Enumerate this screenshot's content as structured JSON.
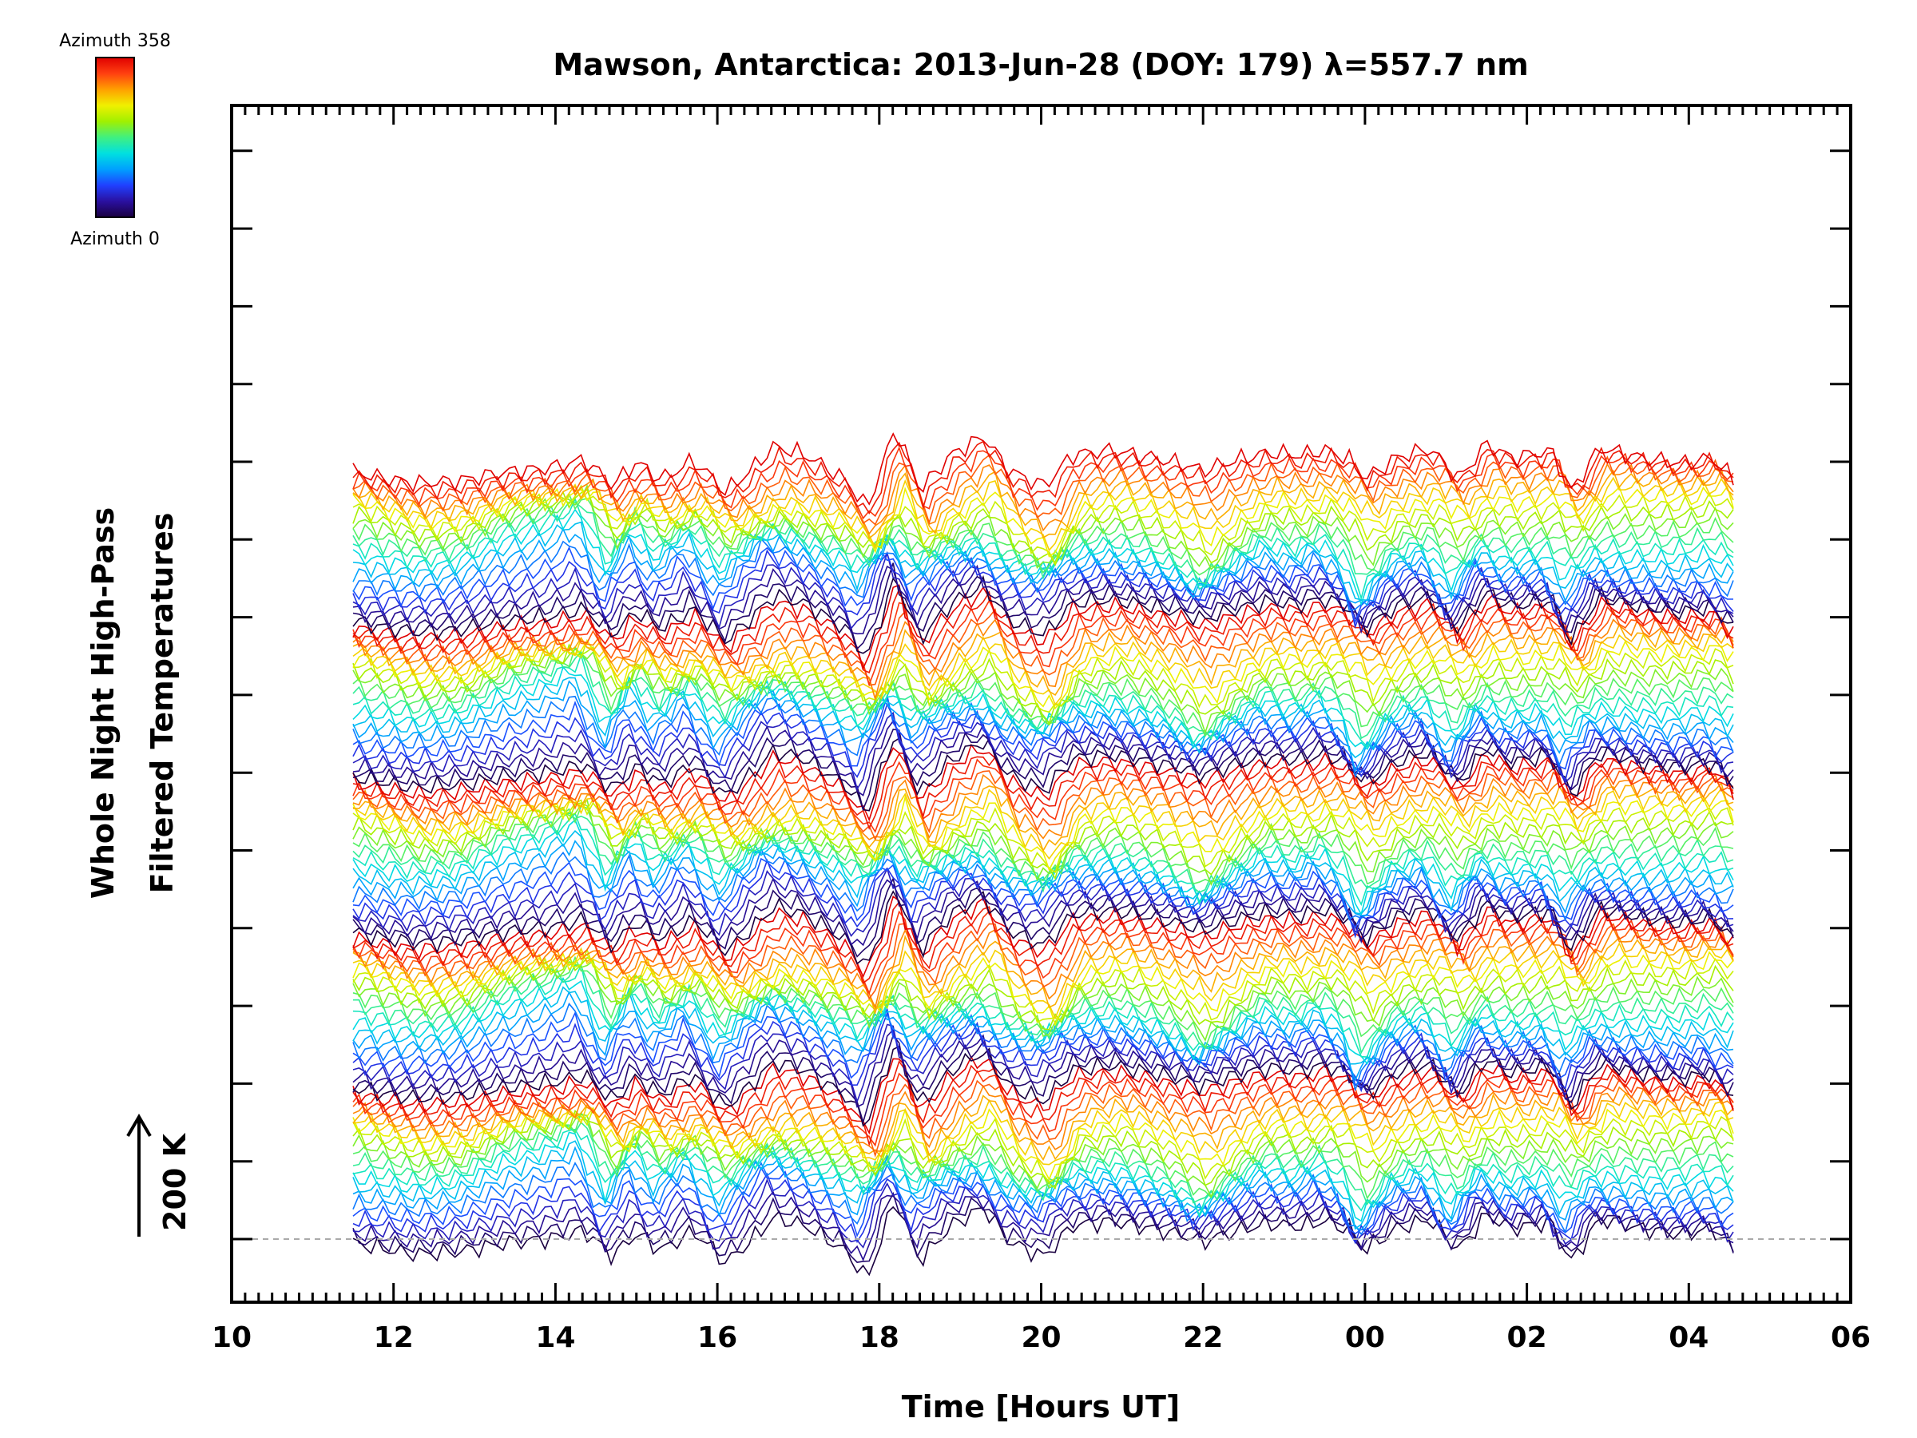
{
  "chart_data": {
    "type": "line",
    "title": "Mawson, Antarctica: 2013-Jun-28 (DOY: 179) λ=557.7 nm",
    "xlabel": "Time [Hours UT]",
    "ylabel_line1": "Whole Night High-Pass",
    "ylabel_line2": "Filtered Temperatures",
    "x_tick_labels": [
      "10",
      "12",
      "14",
      "16",
      "18",
      "20",
      "22",
      "00",
      "02",
      "04",
      "06"
    ],
    "x_ticks_hours": [
      10,
      12,
      14,
      16,
      18,
      20,
      22,
      24,
      26,
      28,
      30
    ],
    "xlim_hours": [
      10,
      30
    ],
    "data_range_hours": [
      11.5,
      28.55
    ],
    "scale_bar": {
      "label": "200 K",
      "value_K": 200
    },
    "colorbar": {
      "top_label": "Azimuth 358",
      "bottom_label": "Azimuth 0",
      "azimuth_range": [
        0,
        358
      ],
      "colormap": [
        "#1a0040",
        "#2a10a0",
        "#2040ff",
        "#00a0ff",
        "#00e0e0",
        "#40f080",
        "#a0f000",
        "#f0f000",
        "#ffa000",
        "#ff4010",
        "#e00000"
      ]
    },
    "stack": {
      "groups": 5,
      "traces_per_group": 24,
      "baseline_dashed": true,
      "grid": false
    },
    "wave_hours": [
      11.5,
      12.3,
      12.8,
      13.4,
      14.0,
      14.35,
      14.7,
      15.0,
      15.3,
      15.7,
      16.1,
      16.7,
      17.1,
      17.6,
      17.85,
      18.2,
      18.5,
      18.9,
      19.3,
      19.6,
      20.05,
      20.4,
      20.9,
      21.35,
      21.8,
      22.0,
      22.4,
      22.8,
      23.2,
      23.5,
      23.8,
      24.0,
      24.4,
      24.8,
      25.15,
      25.5,
      25.8,
      26.3,
      26.55,
      26.9,
      27.4,
      27.9,
      28.3,
      28.55
    ],
    "wave_values": [
      0.1,
      -0.4,
      -0.3,
      0.3,
      0.6,
      0.95,
      -0.5,
      0.6,
      -0.2,
      0.5,
      -0.6,
      0.7,
      0.4,
      -0.3,
      -1.0,
      1.0,
      -0.6,
      0.3,
      0.8,
      -0.2,
      -0.8,
      0.3,
      0.5,
      0.2,
      -0.3,
      -0.7,
      0.0,
      0.5,
      0.3,
      0.6,
      0.1,
      -0.8,
      0.2,
      0.5,
      -0.5,
      0.6,
      0.2,
      0.4,
      -0.6,
      0.5,
      0.3,
      0.2,
      0.4,
      -0.2
    ]
  }
}
